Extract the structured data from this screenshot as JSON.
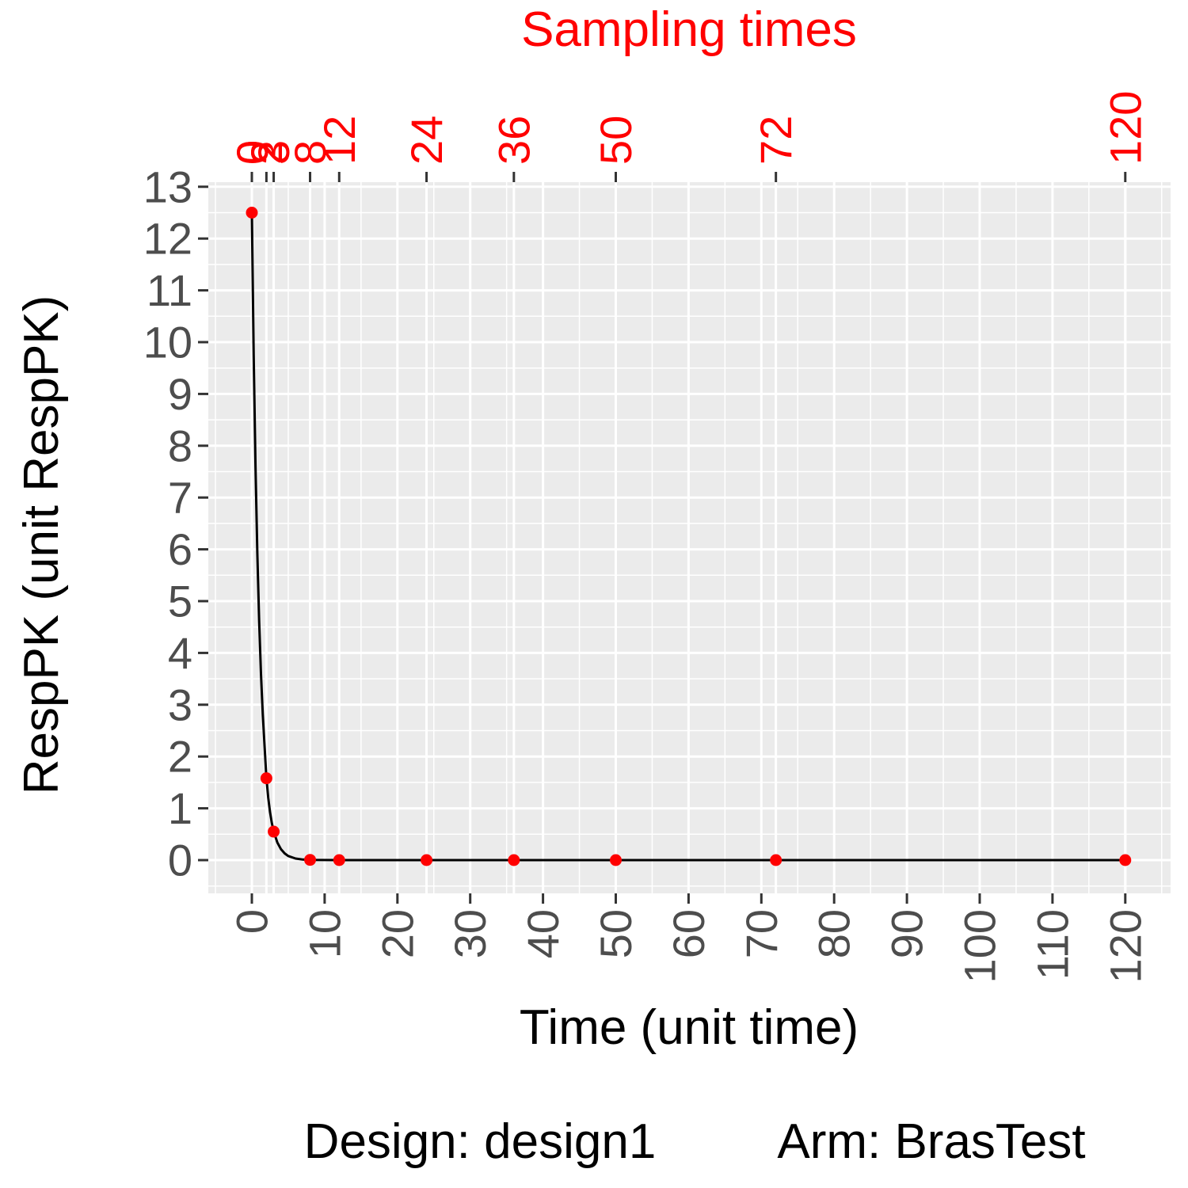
{
  "chart_data": {
    "type": "line",
    "title": "",
    "xlabel": "Time (unit time)",
    "ylabel": "RespPK (unit RespPK)",
    "secondary_x_title": "Sampling times",
    "xlim": [
      -6,
      126
    ],
    "ylim": [
      -0.6,
      13.1
    ],
    "x_ticks": [
      0,
      10,
      20,
      30,
      40,
      50,
      60,
      70,
      80,
      90,
      100,
      110,
      120
    ],
    "y_ticks": [
      0,
      1,
      2,
      3,
      4,
      5,
      6,
      7,
      8,
      9,
      10,
      11,
      12,
      13
    ],
    "sampling_times": [
      0,
      2,
      3,
      8,
      12,
      24,
      36,
      50,
      72,
      120
    ],
    "sampling_time_labels": [
      "0",
      "0",
      "2",
      "2",
      "3",
      "8",
      "12",
      "24",
      "36",
      "50",
      "72",
      "120"
    ],
    "sampling_time_label_x": [
      0.05,
      0.05,
      2,
      2,
      3,
      8,
      12,
      24,
      36,
      50,
      72,
      120
    ],
    "series": [
      {
        "type": "line",
        "color": "#000000",
        "x": [
          0,
          0.25,
          0.5,
          0.75,
          1,
          1.25,
          1.5,
          1.75,
          2,
          2.25,
          2.5,
          2.75,
          3,
          3.5,
          4,
          4.5,
          5,
          6,
          7,
          8,
          10,
          12,
          24,
          36,
          50,
          72,
          120
        ],
        "y": [
          12.5,
          9.75,
          7.6,
          5.93,
          4.62,
          3.6,
          2.81,
          2.19,
          1.58,
          1.2,
          0.92,
          0.71,
          0.55,
          0.34,
          0.21,
          0.13,
          0.08,
          0.03,
          0.01,
          0.004,
          0.001,
          0,
          0,
          0,
          0,
          0,
          0
        ]
      },
      {
        "type": "scatter",
        "color": "#ff0000",
        "x": [
          0,
          2,
          3,
          8,
          12,
          24,
          36,
          50,
          72,
          120
        ],
        "y": [
          12.5,
          1.58,
          0.55,
          0.004,
          0,
          0,
          0,
          0,
          0,
          0
        ]
      }
    ],
    "grid": true,
    "colors": {
      "panel": "#ebebeb",
      "grid": "#ffffff",
      "axis_text": "#4d4d4d",
      "accent": "#ff0000"
    }
  },
  "caption": {
    "design": "Design: design1",
    "arm": "Arm: BrasTest"
  }
}
